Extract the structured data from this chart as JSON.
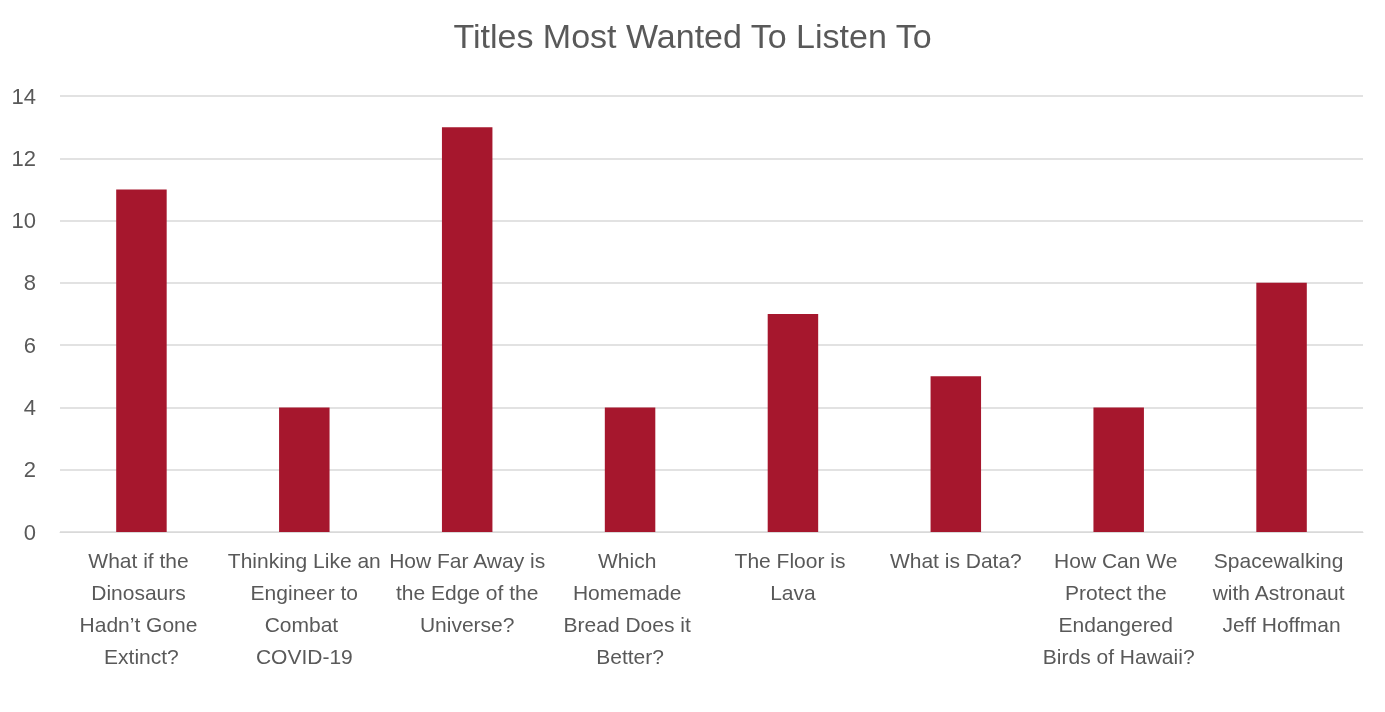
{
  "chart_data": {
    "type": "bar",
    "title": "Titles Most Wanted To Listen To",
    "categories": [
      "What if the Dinosaurs Hadn’t Gone Extinct?",
      "Thinking Like an Engineer to Combat COVID-19",
      "How Far Away is the Edge of the Universe?",
      "Which Homemade Bread Does it Better?",
      "The Floor is Lava",
      "What is Data?",
      "How Can We Protect the Endangered Birds of Hawaii?",
      "Spacewalking with Astronaut Jeff Hoffman"
    ],
    "values": [
      11,
      4,
      13,
      4,
      7,
      5,
      4,
      8
    ],
    "color": "#a6172d",
    "ylim": [
      0,
      14
    ],
    "yticks": [
      0,
      2,
      4,
      6,
      8,
      10,
      12,
      14
    ],
    "grid": "y"
  }
}
